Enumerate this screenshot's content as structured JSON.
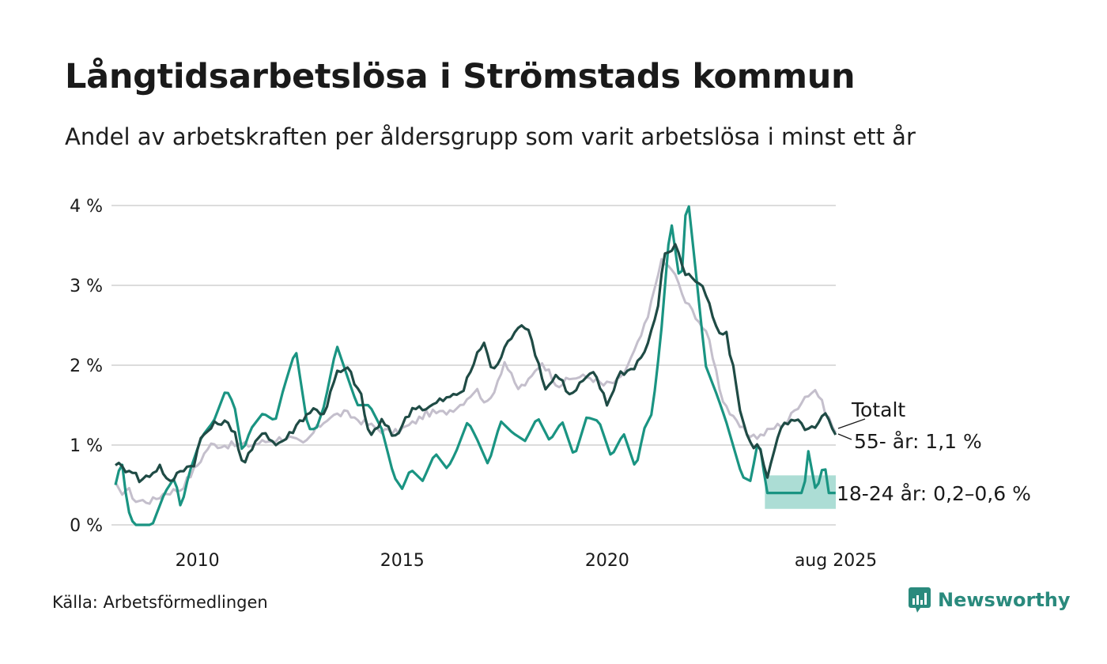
{
  "title": "Långtidsarbetslösa i Strömstads kommun",
  "subtitle": "Andel av arbetskraften per åldersgrupp som varit arbetslösa i minst ett år",
  "source": "Källa: Arbetsförmedlingen",
  "brand": {
    "name": "Newsworthy",
    "icon": "newsworthy-logo-icon",
    "color": "#2a8a7d"
  },
  "chart_data": {
    "type": "line",
    "x_start": 2008.0,
    "x_end": 2025.58,
    "x_step": 0.0833,
    "x_ticks": [
      {
        "value": 2010,
        "label": "2010"
      },
      {
        "value": 2015,
        "label": "2015"
      },
      {
        "value": 2020,
        "label": "2020"
      },
      {
        "value": 2025.58,
        "label": "aug 2025"
      }
    ],
    "ylim": [
      0,
      4.2
    ],
    "y_ticks": [
      {
        "value": 0,
        "label": "0 %"
      },
      {
        "value": 1,
        "label": "1 %"
      },
      {
        "value": 2,
        "label": "2 %"
      },
      {
        "value": 3,
        "label": "3 %"
      },
      {
        "value": 4,
        "label": "4 %"
      }
    ],
    "grid": true,
    "series": [
      {
        "name": "Totalt",
        "label": "Totalt",
        "color": "#c4bfcc",
        "anchors": [
          [
            2008.0,
            0.5
          ],
          [
            2008.1,
            0.4
          ],
          [
            2008.3,
            0.45
          ],
          [
            2008.5,
            0.3
          ],
          [
            2008.9,
            0.3
          ],
          [
            2009.2,
            0.4
          ],
          [
            2009.6,
            0.45
          ],
          [
            2010.0,
            0.75
          ],
          [
            2010.3,
            1.0
          ],
          [
            2010.9,
            1.0
          ],
          [
            2011.3,
            1.0
          ],
          [
            2011.7,
            1.05
          ],
          [
            2012.2,
            1.1
          ],
          [
            2012.6,
            1.0
          ],
          [
            2012.9,
            1.2
          ],
          [
            2013.2,
            1.35
          ],
          [
            2013.6,
            1.4
          ],
          [
            2014.0,
            1.3
          ],
          [
            2014.4,
            1.2
          ],
          [
            2014.8,
            1.15
          ],
          [
            2015.2,
            1.25
          ],
          [
            2015.6,
            1.4
          ],
          [
            2016.0,
            1.4
          ],
          [
            2016.4,
            1.5
          ],
          [
            2016.8,
            1.7
          ],
          [
            2017.1,
            1.5
          ],
          [
            2017.5,
            2.05
          ],
          [
            2017.8,
            1.7
          ],
          [
            2018.1,
            1.8
          ],
          [
            2018.4,
            2.05
          ],
          [
            2018.8,
            1.75
          ],
          [
            2019.2,
            1.85
          ],
          [
            2019.6,
            1.85
          ],
          [
            2019.9,
            1.75
          ],
          [
            2020.3,
            1.8
          ],
          [
            2020.7,
            2.2
          ],
          [
            2021.0,
            2.6
          ],
          [
            2021.3,
            3.3
          ],
          [
            2021.6,
            3.2
          ],
          [
            2021.9,
            2.8
          ],
          [
            2022.2,
            2.6
          ],
          [
            2022.5,
            2.3
          ],
          [
            2022.8,
            1.6
          ],
          [
            2023.1,
            1.3
          ],
          [
            2023.4,
            1.15
          ],
          [
            2023.7,
            1.1
          ],
          [
            2024.0,
            1.2
          ],
          [
            2024.4,
            1.3
          ],
          [
            2024.8,
            1.6
          ],
          [
            2025.1,
            1.7
          ],
          [
            2025.3,
            1.45
          ],
          [
            2025.58,
            1.15
          ]
        ],
        "end_label": "Totalt"
      },
      {
        "name": "55- år",
        "label": "55- år: 1,1 %",
        "color": "#1f4b45",
        "anchors": [
          [
            2008.0,
            0.78
          ],
          [
            2008.2,
            0.7
          ],
          [
            2008.4,
            0.7
          ],
          [
            2008.6,
            0.55
          ],
          [
            2008.9,
            0.65
          ],
          [
            2009.1,
            0.75
          ],
          [
            2009.3,
            0.5
          ],
          [
            2009.6,
            0.7
          ],
          [
            2009.9,
            0.75
          ],
          [
            2010.1,
            1.1
          ],
          [
            2010.4,
            1.25
          ],
          [
            2010.6,
            1.3
          ],
          [
            2010.9,
            1.2
          ],
          [
            2011.1,
            0.75
          ],
          [
            2011.3,
            0.9
          ],
          [
            2011.6,
            1.2
          ],
          [
            2011.9,
            1.0
          ],
          [
            2012.2,
            1.1
          ],
          [
            2012.5,
            1.3
          ],
          [
            2012.8,
            1.45
          ],
          [
            2013.1,
            1.4
          ],
          [
            2013.4,
            1.9
          ],
          [
            2013.7,
            1.95
          ],
          [
            2014.0,
            1.6
          ],
          [
            2014.2,
            1.1
          ],
          [
            2014.5,
            1.3
          ],
          [
            2014.8,
            1.1
          ],
          [
            2015.0,
            1.25
          ],
          [
            2015.3,
            1.5
          ],
          [
            2015.6,
            1.45
          ],
          [
            2015.9,
            1.55
          ],
          [
            2016.2,
            1.6
          ],
          [
            2016.5,
            1.7
          ],
          [
            2016.8,
            2.1
          ],
          [
            2017.0,
            2.3
          ],
          [
            2017.2,
            1.9
          ],
          [
            2017.5,
            2.2
          ],
          [
            2017.8,
            2.5
          ],
          [
            2018.0,
            2.5
          ],
          [
            2018.2,
            2.25
          ],
          [
            2018.5,
            1.7
          ],
          [
            2018.8,
            1.9
          ],
          [
            2019.1,
            1.6
          ],
          [
            2019.4,
            1.8
          ],
          [
            2019.7,
            1.9
          ],
          [
            2020.0,
            1.5
          ],
          [
            2020.3,
            1.9
          ],
          [
            2020.6,
            1.95
          ],
          [
            2020.9,
            2.15
          ],
          [
            2021.2,
            2.6
          ],
          [
            2021.4,
            3.4
          ],
          [
            2021.7,
            3.5
          ],
          [
            2021.9,
            3.15
          ],
          [
            2022.1,
            3.1
          ],
          [
            2022.4,
            2.9
          ],
          [
            2022.7,
            2.4
          ],
          [
            2022.9,
            2.4
          ],
          [
            2023.1,
            1.9
          ],
          [
            2023.3,
            1.3
          ],
          [
            2023.5,
            1.0
          ],
          [
            2023.7,
            1.0
          ],
          [
            2023.9,
            0.6
          ],
          [
            2024.1,
            1.0
          ],
          [
            2024.3,
            1.25
          ],
          [
            2024.6,
            1.3
          ],
          [
            2024.9,
            1.2
          ],
          [
            2025.1,
            1.2
          ],
          [
            2025.3,
            1.4
          ],
          [
            2025.58,
            1.1
          ]
        ],
        "end_label": "55- år: 1,1 %"
      },
      {
        "name": "18-24 år",
        "label": "18-24 år: 0,2–0,6 %",
        "color": "#1a9482",
        "anchors": [
          [
            2008.0,
            0.5
          ],
          [
            2008.15,
            0.82
          ],
          [
            2008.3,
            0.2
          ],
          [
            2008.45,
            0.0
          ],
          [
            2008.9,
            0.0
          ],
          [
            2009.2,
            0.4
          ],
          [
            2009.45,
            0.6
          ],
          [
            2009.6,
            0.2
          ],
          [
            2009.8,
            0.65
          ],
          [
            2010.1,
            1.1
          ],
          [
            2010.4,
            1.3
          ],
          [
            2010.7,
            1.7
          ],
          [
            2010.9,
            1.5
          ],
          [
            2011.1,
            0.9
          ],
          [
            2011.3,
            1.2
          ],
          [
            2011.6,
            1.4
          ],
          [
            2011.9,
            1.3
          ],
          [
            2012.1,
            1.7
          ],
          [
            2012.4,
            2.2
          ],
          [
            2012.7,
            1.2
          ],
          [
            2012.9,
            1.2
          ],
          [
            2013.1,
            1.5
          ],
          [
            2013.4,
            2.25
          ],
          [
            2013.7,
            1.8
          ],
          [
            2013.9,
            1.5
          ],
          [
            2014.2,
            1.5
          ],
          [
            2014.5,
            1.2
          ],
          [
            2014.8,
            0.6
          ],
          [
            2015.0,
            0.45
          ],
          [
            2015.2,
            0.7
          ],
          [
            2015.5,
            0.55
          ],
          [
            2015.8,
            0.9
          ],
          [
            2016.1,
            0.7
          ],
          [
            2016.3,
            0.9
          ],
          [
            2016.6,
            1.3
          ],
          [
            2016.8,
            1.1
          ],
          [
            2017.1,
            0.75
          ],
          [
            2017.4,
            1.3
          ],
          [
            2017.7,
            1.15
          ],
          [
            2018.0,
            1.05
          ],
          [
            2018.3,
            1.35
          ],
          [
            2018.6,
            1.05
          ],
          [
            2018.9,
            1.3
          ],
          [
            2019.2,
            0.85
          ],
          [
            2019.5,
            1.35
          ],
          [
            2019.8,
            1.3
          ],
          [
            2020.1,
            0.85
          ],
          [
            2020.4,
            1.15
          ],
          [
            2020.7,
            0.7
          ],
          [
            2020.9,
            1.2
          ],
          [
            2021.1,
            1.4
          ],
          [
            2021.3,
            2.3
          ],
          [
            2021.55,
            3.85
          ],
          [
            2021.8,
            2.95
          ],
          [
            2021.95,
            4.2
          ],
          [
            2022.2,
            3.0
          ],
          [
            2022.4,
            2.0
          ],
          [
            2022.7,
            1.6
          ],
          [
            2022.9,
            1.3
          ],
          [
            2023.1,
            0.95
          ],
          [
            2023.3,
            0.6
          ],
          [
            2023.5,
            0.55
          ],
          [
            2023.7,
            1.1
          ],
          [
            2023.9,
            0.4
          ],
          [
            2024.8,
            0.4
          ],
          [
            2024.9,
            0.95
          ],
          [
            2025.1,
            0.4
          ],
          [
            2025.3,
            0.8
          ],
          [
            2025.4,
            0.4
          ],
          [
            2025.58,
            0.4
          ]
        ],
        "band": {
          "from": 2023.85,
          "low": 0.2,
          "high": 0.62,
          "color": "#a8dbd3"
        },
        "end_label": "18-24 år: 0,2–0,6 %"
      }
    ]
  }
}
